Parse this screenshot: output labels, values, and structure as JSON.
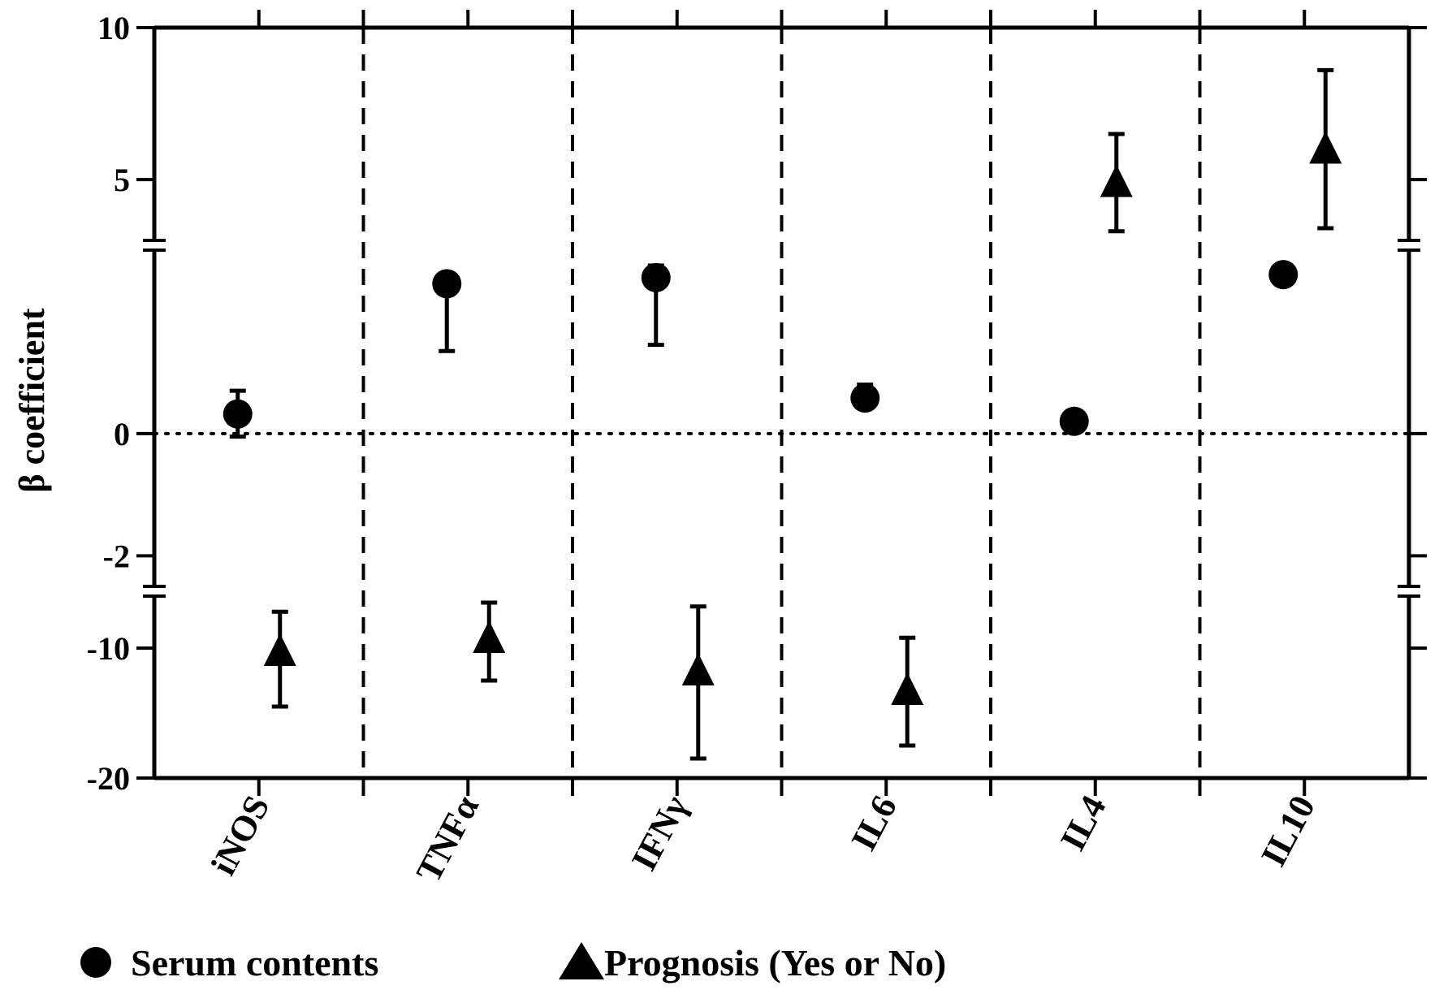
{
  "chart_data": {
    "type": "scatter",
    "categories": [
      "iNOS",
      "TNFα",
      "IFNγ",
      "IL6",
      "IL4",
      "IL10"
    ],
    "ylabel": "β coefficient",
    "xlabel": "",
    "yticks": [
      "10",
      "5",
      "0",
      "-2",
      "-10",
      "-20"
    ],
    "y_axis_segments": [
      {
        "ylim": [
          3,
          10
        ],
        "ticks": [
          5,
          10
        ]
      },
      {
        "ylim": [
          -2.5,
          3
        ],
        "ticks": [
          -2,
          0
        ]
      },
      {
        "ylim": [
          -20,
          -6
        ],
        "ticks": [
          -20,
          -10
        ]
      }
    ],
    "axis_break": true,
    "reference_line": 0,
    "category_separators": "dashed",
    "series": [
      {
        "name": "Serum contents",
        "marker": "circle",
        "values": [
          0.32,
          2.45,
          2.55,
          0.58,
          0.2,
          2.6
        ],
        "error_low": [
          -0.05,
          1.35,
          1.45,
          0.45,
          null,
          null
        ],
        "error_high": [
          0.7,
          2.55,
          2.75,
          0.8,
          null,
          null
        ]
      },
      {
        "name": "Prognosis (Yes or No)",
        "marker": "triangle",
        "values": [
          -10.5,
          -9.5,
          -12.0,
          -13.5,
          4.8,
          5.9
        ],
        "error_low": [
          -14.5,
          -12.5,
          -18.5,
          -17.5,
          3.3,
          3.4
        ],
        "error_high": [
          -7.2,
          -6.5,
          -6.8,
          -9.2,
          6.5,
          8.6
        ]
      }
    ],
    "legend": {
      "position": "bottom-left",
      "items": [
        "Serum contents",
        "Prognosis (Yes or No)"
      ]
    }
  }
}
